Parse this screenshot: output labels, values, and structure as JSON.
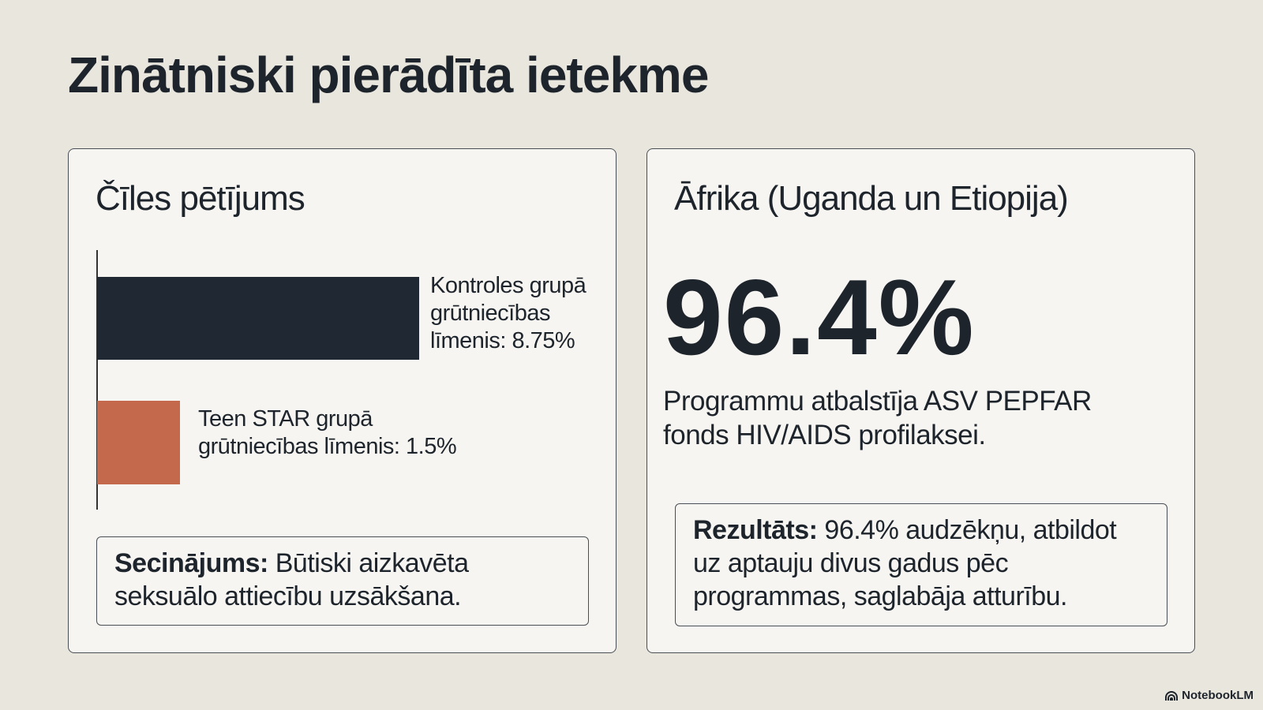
{
  "title": "Zinātniski pierādīta ietekme",
  "left_panel": {
    "heading": "Čīles pētījums",
    "conclusion_label": "Secinājums:",
    "conclusion_text": " Būtiski aizkavēta seksuālo attiecību uzsākšana."
  },
  "right_panel": {
    "heading": "Āfrika (Uganda un Etiopija)",
    "big_stat": "96.4%",
    "description": "Programmu atbalstīja ASV PEPFAR fonds HIV/AIDS profilaksei.",
    "result_label": "Rezultāts:",
    "result_text": " 96.4% audzēkņu, atbildot uz aptauju divus gadus pēc programmas, saglabāja atturību."
  },
  "brand": "NotebookLM",
  "chart_data": {
    "type": "bar",
    "orientation": "horizontal",
    "categories": [
      "Kontroles grupā grūtniecības līmenis: 8.75%",
      "Teen STAR grupā grūtniecības līmenis: 1.5%"
    ],
    "values": [
      8.75,
      1.5
    ],
    "unit": "%",
    "colors": [
      "#1f2833",
      "#c4694b"
    ],
    "title": "Čīles pētījums"
  }
}
